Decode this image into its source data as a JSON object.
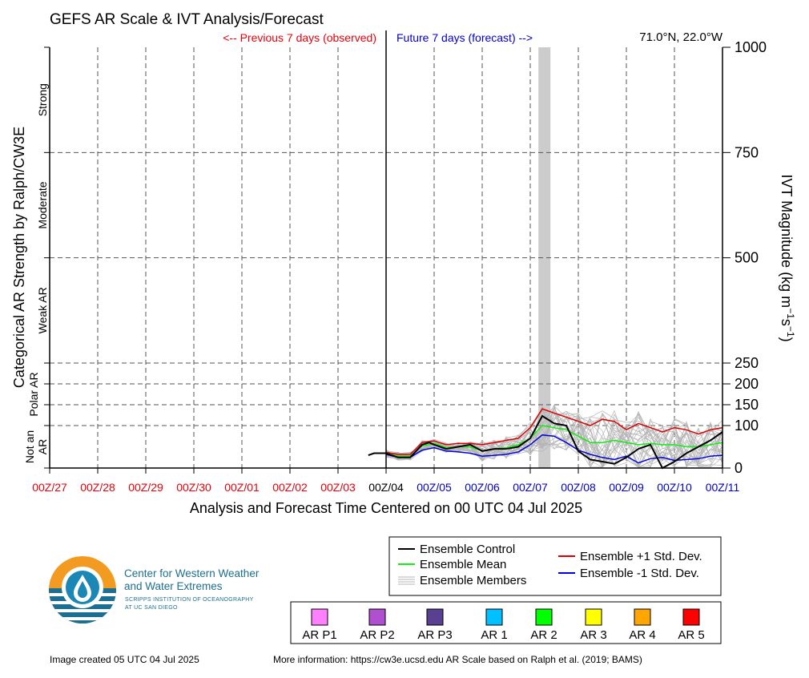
{
  "chart_data": {
    "type": "line",
    "title": "GEFS AR Scale & IVT Analysis/Forecast",
    "location": "71.0°N, 22.0°W",
    "header_left": "<-- Previous 7 days (observed)",
    "header_right": "Future 7 days (forecast) -->",
    "xlabel": "Analysis and Forecast Time Centered on 00 UTC 04 Jul 2025",
    "ylabel_left": "Categorical AR Strength by Ralph/CW3E",
    "ylabel_right": "IVT Magnitude (kg m⁻¹s⁻¹)",
    "xlim_days": [
      -7,
      7
    ],
    "ylim": [
      0,
      1000
    ],
    "y_scale": "piecewise: 0-100 and 100-250 expanded, 250-1000 linear",
    "x_ticks": [
      {
        "day": -7,
        "label": "00Z/27",
        "color": "#e8000b"
      },
      {
        "day": -6,
        "label": "00Z/28",
        "color": "#e8000b"
      },
      {
        "day": -5,
        "label": "00Z/29",
        "color": "#e8000b"
      },
      {
        "day": -4,
        "label": "00Z/30",
        "color": "#e8000b"
      },
      {
        "day": -3,
        "label": "00Z/01",
        "color": "#e8000b"
      },
      {
        "day": -2,
        "label": "00Z/02",
        "color": "#e8000b"
      },
      {
        "day": -1,
        "label": "00Z/03",
        "color": "#e8000b"
      },
      {
        "day": 0,
        "label": "00Z/04",
        "color": "#000000"
      },
      {
        "day": 1,
        "label": "00Z/05",
        "color": "#0000cc"
      },
      {
        "day": 2,
        "label": "00Z/06",
        "color": "#0000cc"
      },
      {
        "day": 3,
        "label": "00Z/07",
        "color": "#0000cc"
      },
      {
        "day": 4,
        "label": "00Z/08",
        "color": "#0000cc"
      },
      {
        "day": 5,
        "label": "00Z/09",
        "color": "#0000cc"
      },
      {
        "day": 6,
        "label": "00Z/10",
        "color": "#0000cc"
      },
      {
        "day": 7,
        "label": "00Z/11",
        "color": "#0000cc"
      }
    ],
    "y_ticks": [
      0,
      100,
      150,
      200,
      250,
      500,
      750,
      1000
    ],
    "categories": [
      {
        "label": "Strong",
        "low": 750,
        "high": 1000
      },
      {
        "label": "Moderate",
        "low": 500,
        "high": 750
      },
      {
        "label": "Weak AR",
        "low": 250,
        "high": 500
      },
      {
        "label": "Polar AR",
        "low": 100,
        "high": 250
      },
      {
        "label": "Not an AR",
        "low": 0,
        "high": 100
      }
    ],
    "highlight_band_days": [
      3.17,
      3.42
    ],
    "series": [
      {
        "name": "Ensemble Control",
        "color": "#000000",
        "x": [
          -0.37,
          -0.25,
          0,
          0.25,
          0.5,
          0.75,
          0.9,
          1,
          1.25,
          1.5,
          1.75,
          2,
          2.25,
          2.5,
          2.75,
          3,
          3.25,
          3.5,
          3.75,
          4,
          4.25,
          4.5,
          4.75,
          5,
          5.25,
          5.5,
          5.75,
          6,
          6.25,
          6.5,
          6.75,
          7
        ],
        "y": [
          30,
          35,
          35,
          25,
          25,
          55,
          60,
          55,
          45,
          50,
          55,
          40,
          45,
          45,
          50,
          70,
          123,
          105,
          100,
          40,
          20,
          15,
          10,
          25,
          45,
          55,
          0,
          15,
          35,
          50,
          65,
          85
        ]
      },
      {
        "name": "Ensemble Mean",
        "color": "#11ee11",
        "x": [
          0,
          0.25,
          0.5,
          0.75,
          1,
          1.25,
          1.5,
          1.75,
          2,
          2.25,
          2.5,
          2.75,
          3,
          3.25,
          3.5,
          3.75,
          4,
          4.25,
          4.5,
          4.75,
          5,
          5.25,
          5.5,
          5.75,
          6,
          6.25,
          6.5,
          6.75,
          7
        ],
        "y": [
          35,
          28,
          28,
          52,
          58,
          48,
          50,
          50,
          40,
          45,
          48,
          55,
          70,
          100,
          95,
          90,
          75,
          60,
          60,
          65,
          60,
          55,
          58,
          55,
          55,
          50,
          50,
          55,
          60
        ]
      },
      {
        "name": "Ensemble +1 Std. Dev.",
        "color": "#dd0000",
        "x": [
          0,
          0.25,
          0.5,
          0.75,
          1,
          1.25,
          1.5,
          1.75,
          2,
          2.25,
          2.5,
          2.75,
          3,
          3.25,
          3.5,
          3.75,
          4,
          4.25,
          4.5,
          4.75,
          5,
          5.25,
          5.5,
          5.75,
          6,
          6.25,
          6.5,
          6.75,
          7
        ],
        "y": [
          37,
          32,
          32,
          60,
          64,
          55,
          58,
          58,
          55,
          60,
          65,
          70,
          95,
          140,
          130,
          120,
          110,
          100,
          115,
          110,
          90,
          105,
          95,
          85,
          95,
          90,
          80,
          90,
          95
        ]
      },
      {
        "name": "Ensemble -1 Std. Dev.",
        "color": "#0000dd",
        "x": [
          0,
          0.25,
          0.5,
          0.75,
          1,
          1.25,
          1.5,
          1.75,
          2,
          2.25,
          2.5,
          2.75,
          3,
          3.25,
          3.5,
          3.75,
          4,
          4.25,
          4.5,
          4.75,
          5,
          5.25,
          5.5,
          5.75,
          6,
          6.25,
          6.5,
          6.75,
          7
        ],
        "y": [
          32,
          25,
          25,
          42,
          48,
          40,
          38,
          35,
          28,
          30,
          32,
          38,
          55,
          78,
          75,
          60,
          42,
          32,
          25,
          20,
          28,
          12,
          22,
          25,
          18,
          20,
          22,
          28,
          30
        ]
      }
    ],
    "members_label": "Ensemble Members",
    "members_color": "#b4b4b4"
  },
  "legend": {
    "items": [
      {
        "label": "Ensemble Control",
        "color": "#000000"
      },
      {
        "label": "Ensemble Mean",
        "color": "#11ee11"
      },
      {
        "label": "Ensemble Members",
        "color": "#b4b4b4"
      },
      {
        "label": "Ensemble +1 Std. Dev.",
        "color": "#dd0000"
      },
      {
        "label": "Ensemble -1 Std. Dev.",
        "color": "#0000dd"
      }
    ]
  },
  "ar_scale": [
    {
      "label": "AR P1",
      "color": "#ff80ff"
    },
    {
      "label": "AR P2",
      "color": "#b050d0"
    },
    {
      "label": "AR P3",
      "color": "#5a4090"
    },
    {
      "label": "AR 1",
      "color": "#00c0ff"
    },
    {
      "label": "AR 2",
      "color": "#00ff00"
    },
    {
      "label": "AR 3",
      "color": "#ffff00"
    },
    {
      "label": "AR 4",
      "color": "#ffa500"
    },
    {
      "label": "AR 5",
      "color": "#ff0000"
    }
  ],
  "logo": {
    "line1": "Center for Western Weather",
    "line2": "and Water Extremes",
    "line3": "SCRIPPS INSTITUTION OF OCEANOGRAPHY",
    "line4": "AT UC SAN DIEGO",
    "accent_orange": "#f39a21",
    "accent_blue": "#1a87b5"
  },
  "footer": {
    "created": "Image created 05 UTC 04 Jul 2025",
    "info": "More information: https://cw3e.ucsd.edu AR Scale based on Ralph et al. (2019; BAMS)"
  }
}
